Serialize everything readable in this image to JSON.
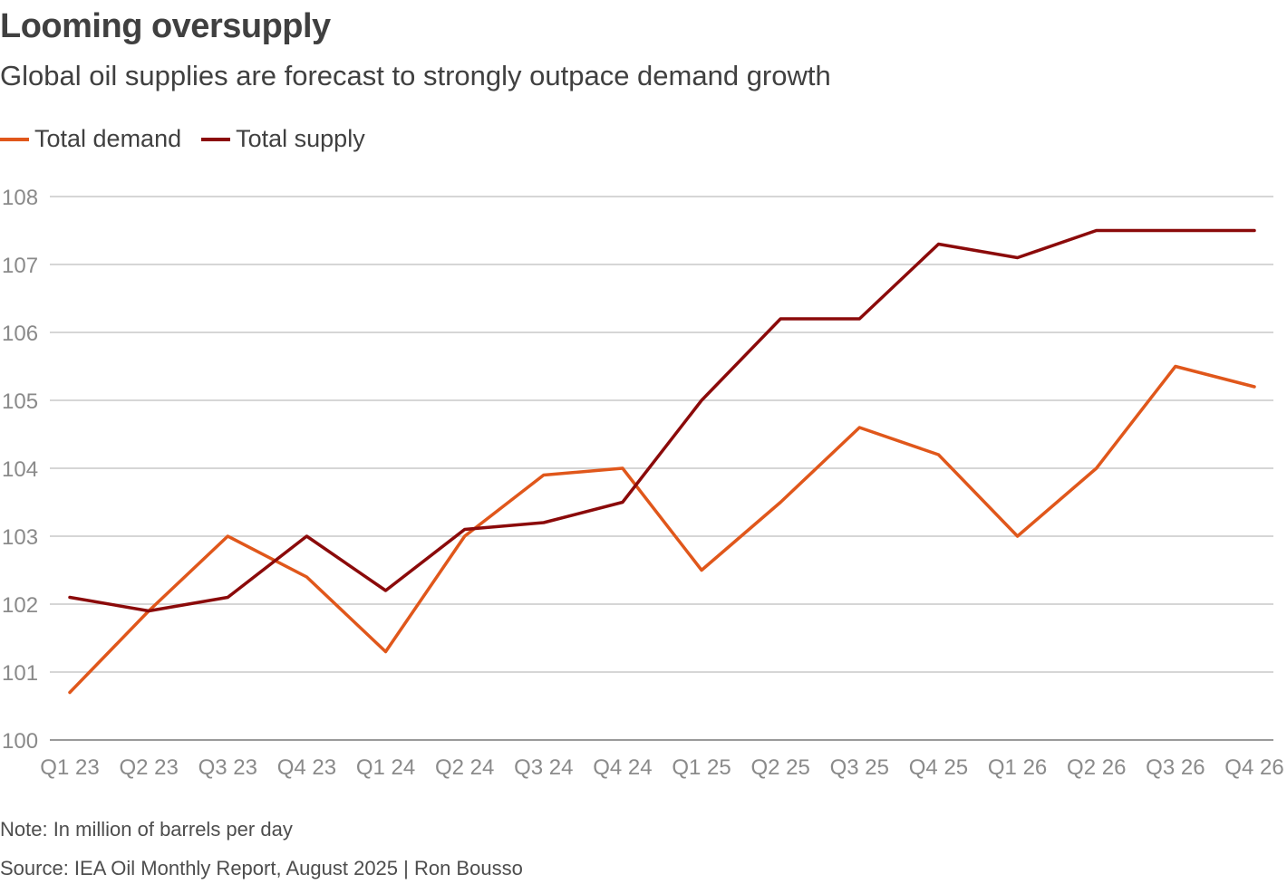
{
  "title": "Looming oversupply",
  "subtitle": "Global oil supplies are forecast to strongly outpace demand growth",
  "note": "Note: In million of barrels per day",
  "source": "Source: IEA Oil Monthly Report, August 2025 | Ron Bousso",
  "colors": {
    "demand": "#e0571b",
    "supply": "#8b0a0a",
    "grid": "#c8c8c8",
    "tick_label": "#8a8a8a"
  },
  "chart_data": {
    "type": "line",
    "categories": [
      "Q1 23",
      "Q2 23",
      "Q3 23",
      "Q4 23",
      "Q1 24",
      "Q2 24",
      "Q3 24",
      "Q4 24",
      "Q1 25",
      "Q2 25",
      "Q3 25",
      "Q4 25",
      "Q1 26",
      "Q2 26",
      "Q3 26",
      "Q4 26"
    ],
    "series": [
      {
        "name": "Total demand",
        "color": "#e0571b",
        "values": [
          100.7,
          101.9,
          103.0,
          102.4,
          101.3,
          103.0,
          103.9,
          104.0,
          102.5,
          103.5,
          104.6,
          104.2,
          103.0,
          104.0,
          105.5,
          105.2
        ]
      },
      {
        "name": "Total supply",
        "color": "#8b0a0a",
        "values": [
          102.1,
          101.9,
          102.1,
          103.0,
          102.2,
          103.1,
          103.2,
          103.5,
          105.0,
          106.2,
          106.2,
          107.3,
          107.1,
          107.5,
          107.5,
          107.5
        ]
      }
    ],
    "yticks": [
      100,
      101,
      102,
      103,
      104,
      105,
      106,
      107,
      108
    ],
    "ylim": [
      100,
      108
    ],
    "grid": true,
    "legend_position": "top-left"
  }
}
